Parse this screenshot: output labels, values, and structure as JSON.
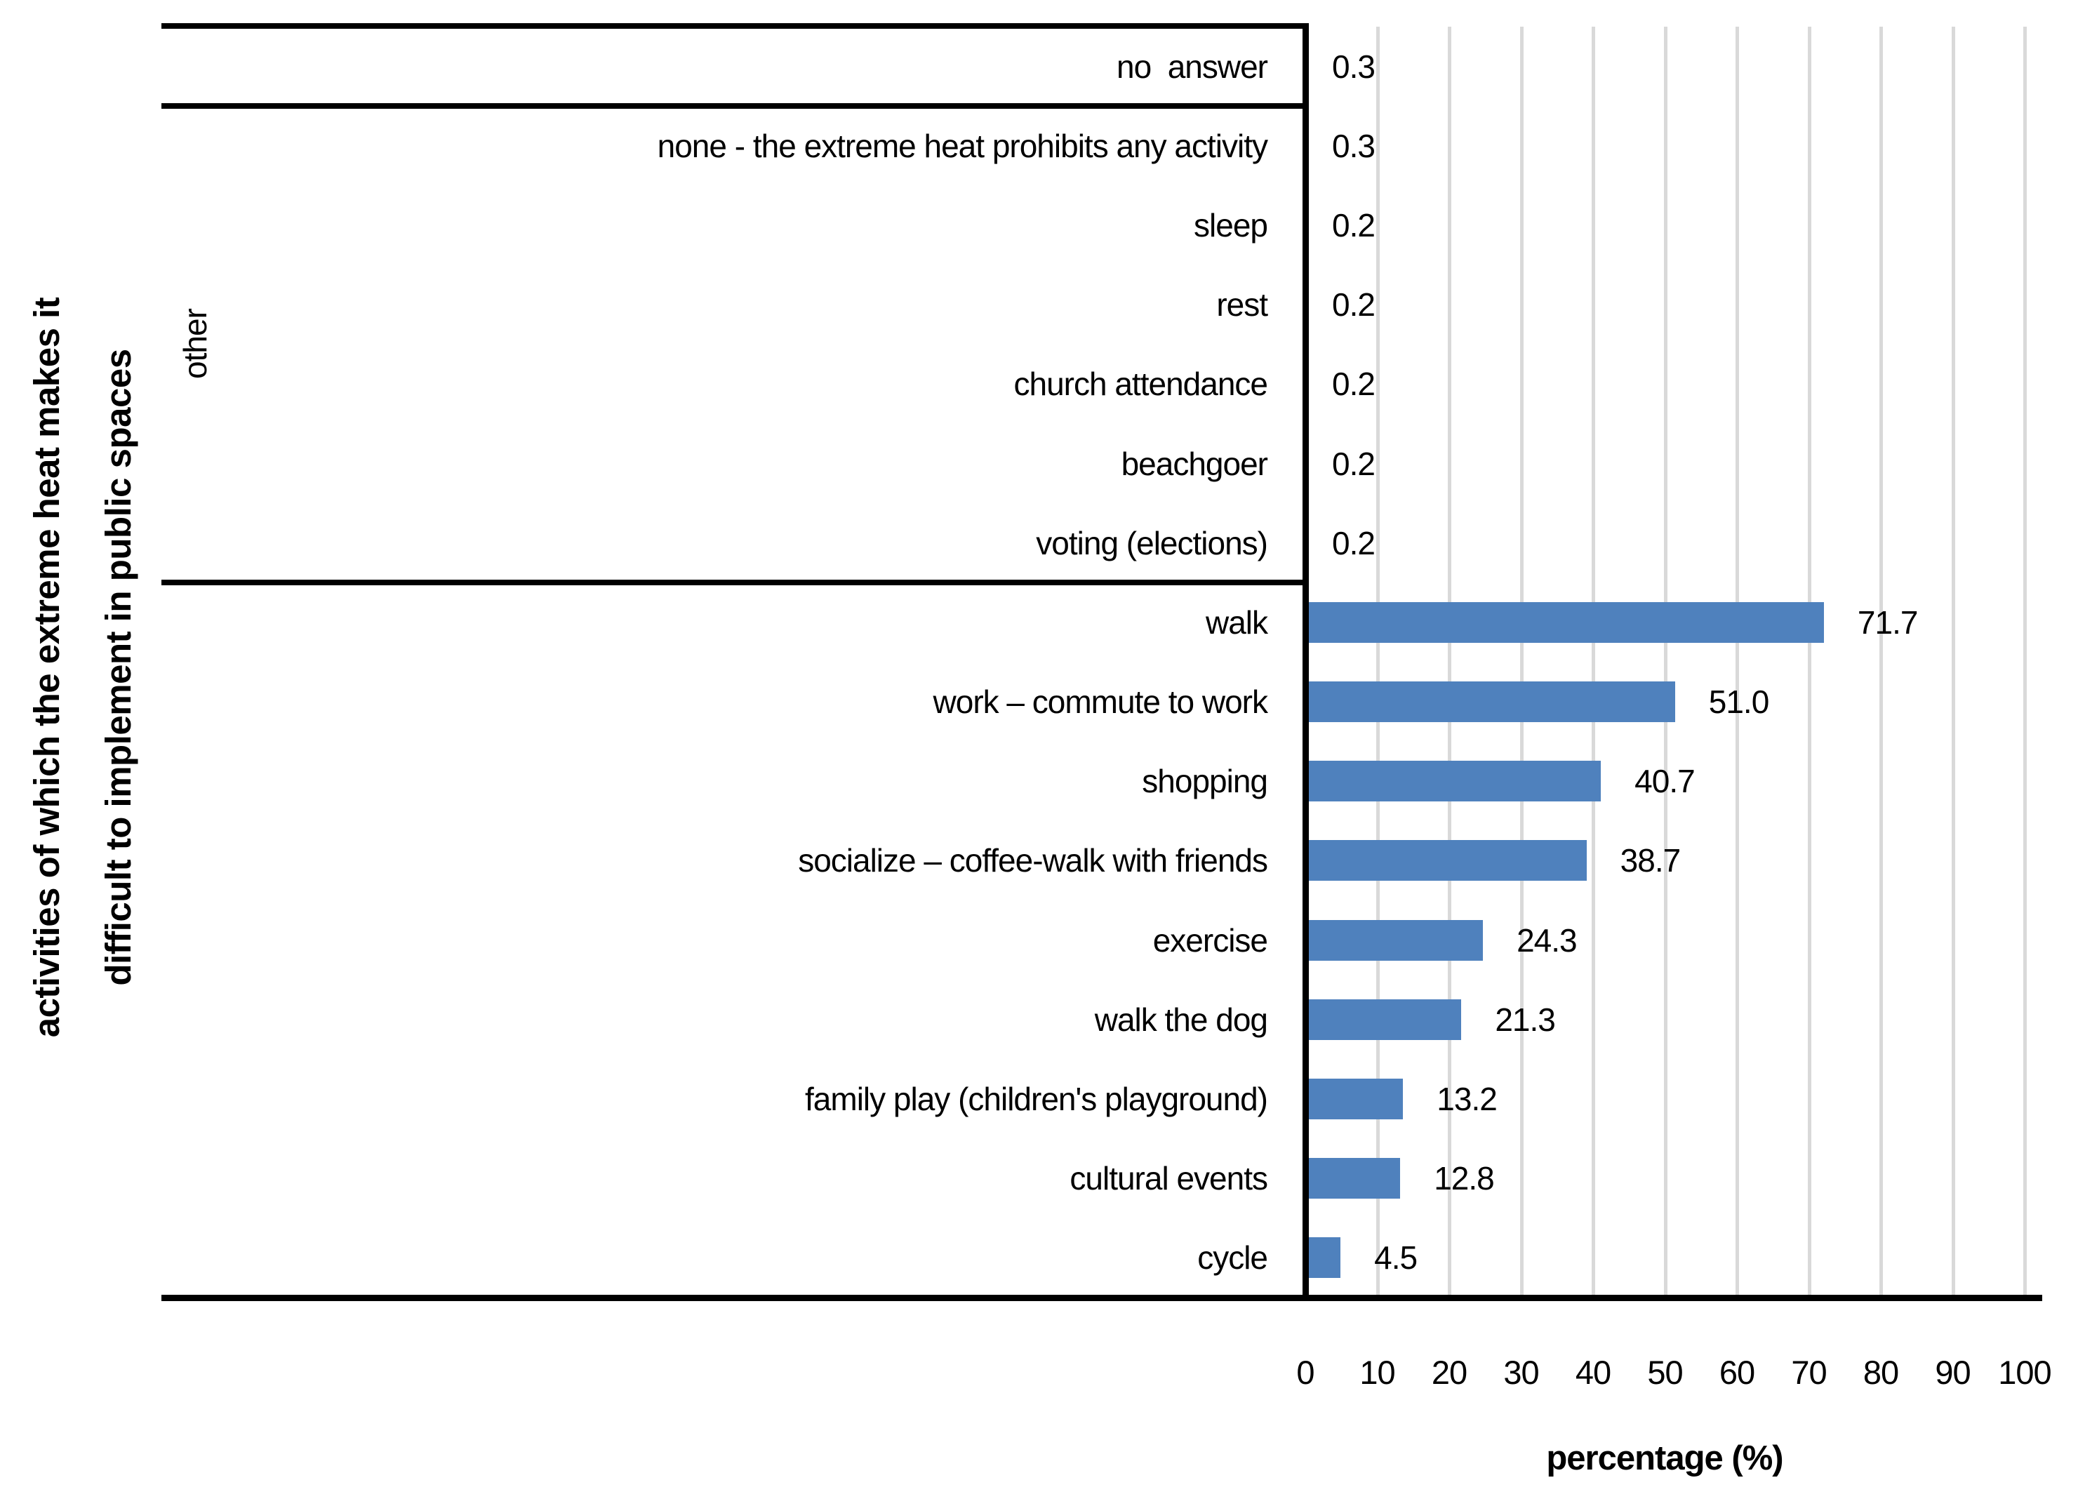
{
  "chart_data": {
    "type": "bar",
    "orientation": "horizontal",
    "title": "",
    "xlabel": "percentage (%)",
    "ylabel_line1": "activities of which the extreme heat makes it",
    "ylabel_line2": "difficult to implement in public spaces",
    "group_label": "other",
    "xlim": [
      0,
      100
    ],
    "x_tick_labels": [
      "0",
      "10",
      "20",
      "30",
      "40",
      "50",
      "60",
      "70",
      "80",
      "90",
      "100"
    ],
    "grid": true,
    "legend": "none",
    "bar_color": "#4F81BD",
    "gridline_color": "#D9D9D9",
    "axis_color": "#000000",
    "categories": [
      "no  answer",
      "none - the extreme heat prohibits any activity",
      "sleep",
      "rest",
      "church attendance",
      "beachgoer",
      "voting (elections)",
      "walk",
      "work – commute to work",
      "shopping",
      "socialize – coffee-walk with friends",
      "exercise",
      "walk the dog",
      "family play (children's playground)",
      "cultural events",
      "cycle"
    ],
    "values": [
      0.3,
      0.3,
      0.2,
      0.2,
      0.2,
      0.2,
      0.2,
      71.7,
      51.0,
      40.7,
      38.7,
      24.3,
      21.3,
      13.2,
      12.8,
      4.5
    ],
    "value_labels": [
      "0.3",
      "0.3",
      "0.2",
      "0.2",
      "0.2",
      "0.2",
      "0.2",
      "71.7",
      "51.0",
      "40.7",
      "38.7",
      "24.3",
      "21.3",
      "13.2",
      "12.8",
      "4.5"
    ],
    "group_structure": {
      "no_answer_row": 0,
      "other_group_rows": [
        1,
        2,
        3,
        4,
        5,
        6
      ],
      "main_rows": [
        7,
        8,
        9,
        10,
        11,
        12,
        13,
        14,
        15
      ]
    }
  }
}
